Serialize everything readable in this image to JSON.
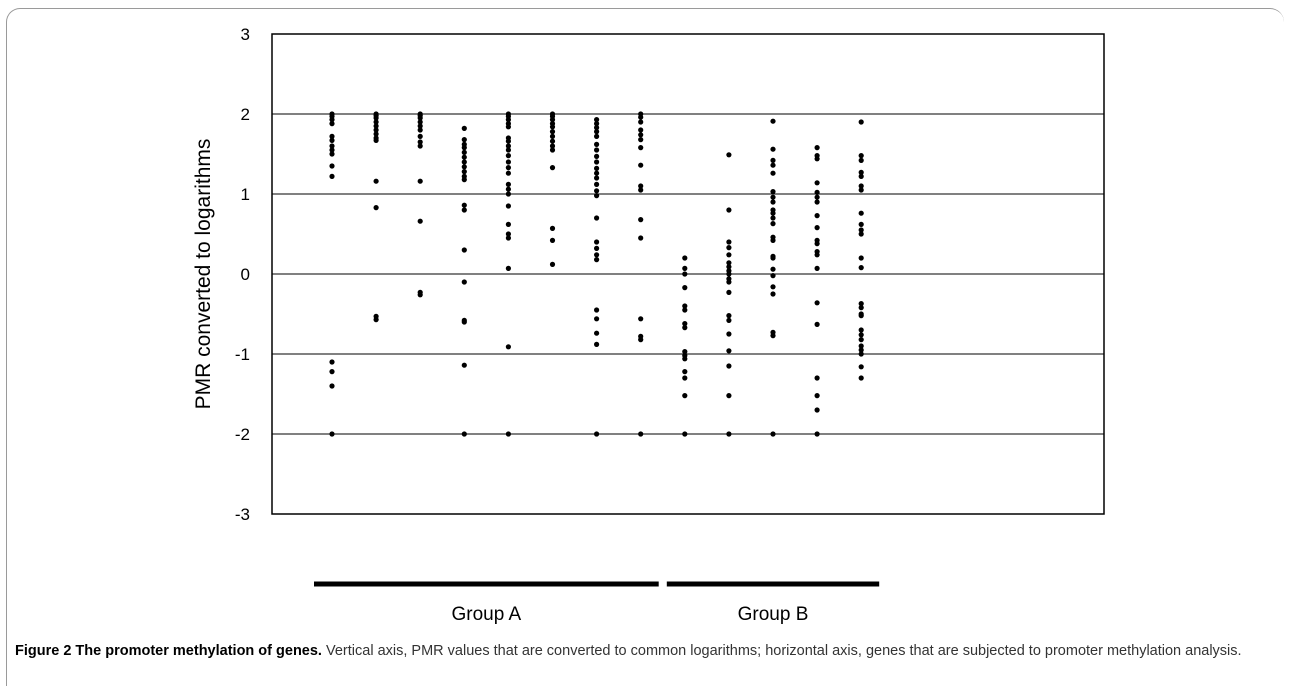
{
  "chart_data": {
    "type": "scatter",
    "ylabel": "PMR converted to logarithms",
    "ylim": [
      -3,
      3
    ],
    "yticks": [
      "3",
      "2",
      "1",
      "0",
      "-1",
      "-2",
      "-3"
    ],
    "grid": "horizontal at 2, 1, 0, -1, -2",
    "groups": [
      {
        "label": "Group A",
        "columns": [
          1,
          8
        ]
      },
      {
        "label": "Group B",
        "columns": [
          9,
          13
        ]
      }
    ],
    "series": [
      {
        "x": 1,
        "values": [
          2.0,
          1.97,
          1.93,
          1.88,
          1.72,
          1.67,
          1.6,
          1.55,
          1.5,
          1.35,
          1.22,
          -1.1,
          -1.22,
          -1.4,
          -2.0
        ]
      },
      {
        "x": 2,
        "values": [
          2.0,
          1.98,
          1.95,
          1.9,
          1.85,
          1.8,
          1.75,
          1.7,
          1.67,
          1.16,
          0.83,
          -0.53,
          -0.57
        ]
      },
      {
        "x": 3,
        "values": [
          2.0,
          1.98,
          1.95,
          1.9,
          1.85,
          1.8,
          1.72,
          1.65,
          1.6,
          1.16,
          0.66,
          -0.23,
          -0.26
        ]
      },
      {
        "x": 4,
        "values": [
          1.82,
          1.68,
          1.62,
          1.58,
          1.52,
          1.46,
          1.4,
          1.34,
          1.28,
          1.22,
          1.18,
          0.86,
          0.8,
          0.3,
          -0.1,
          -0.58,
          -0.6,
          -1.14,
          -2.0
        ]
      },
      {
        "x": 5,
        "values": [
          2.0,
          1.97,
          1.93,
          1.88,
          1.84,
          1.7,
          1.66,
          1.6,
          1.55,
          1.48,
          1.4,
          1.33,
          1.26,
          1.12,
          1.06,
          1.0,
          0.85,
          0.62,
          0.5,
          0.45,
          0.07,
          -0.91,
          -2.0
        ]
      },
      {
        "x": 6,
        "values": [
          2.0,
          1.97,
          1.93,
          1.88,
          1.84,
          1.78,
          1.72,
          1.66,
          1.6,
          1.55,
          1.33,
          0.57,
          0.42,
          0.12
        ]
      },
      {
        "x": 7,
        "values": [
          1.93,
          1.88,
          1.83,
          1.78,
          1.72,
          1.62,
          1.55,
          1.47,
          1.4,
          1.32,
          1.26,
          1.2,
          1.12,
          1.04,
          0.98,
          0.7,
          0.4,
          0.32,
          0.24,
          0.18,
          -0.45,
          -0.56,
          -0.74,
          -0.88,
          -2.0
        ]
      },
      {
        "x": 8,
        "values": [
          2.0,
          1.96,
          1.9,
          1.8,
          1.74,
          1.68,
          1.58,
          1.36,
          1.1,
          1.05,
          0.68,
          0.45,
          -0.56,
          -0.78,
          -0.82,
          -2.0
        ]
      },
      {
        "x": 9,
        "values": [
          0.2,
          0.07,
          0.0,
          -0.17,
          -0.4,
          -0.45,
          -0.62,
          -0.67,
          -0.97,
          -1.02,
          -1.06,
          -1.22,
          -1.3,
          -1.52,
          -2.0
        ]
      },
      {
        "x": 10,
        "values": [
          1.49,
          0.8,
          0.4,
          0.33,
          0.24,
          0.14,
          0.09,
          0.04,
          0.0,
          -0.06,
          -0.1,
          -0.23,
          -0.52,
          -0.58,
          -0.75,
          -0.96,
          -1.15,
          -1.52,
          -2.0
        ]
      },
      {
        "x": 11,
        "values": [
          1.91,
          1.56,
          1.42,
          1.36,
          1.26,
          1.03,
          0.96,
          0.9,
          0.8,
          0.76,
          0.7,
          0.63,
          0.46,
          0.42,
          0.22,
          0.2,
          0.06,
          -0.02,
          -0.16,
          -0.25,
          -0.73,
          -0.77,
          -2.0
        ]
      },
      {
        "x": 12,
        "values": [
          1.58,
          1.48,
          1.44,
          1.14,
          1.02,
          0.96,
          0.9,
          0.73,
          0.58,
          0.42,
          0.38,
          0.28,
          0.24,
          0.07,
          -0.36,
          -0.63,
          -1.3,
          -1.52,
          -1.7,
          -2.0
        ]
      },
      {
        "x": 13,
        "values": [
          1.9,
          1.48,
          1.42,
          1.27,
          1.22,
          1.1,
          1.05,
          0.76,
          0.62,
          0.55,
          0.5,
          0.2,
          0.08,
          -0.37,
          -0.42,
          -0.5,
          -0.52,
          -0.7,
          -0.76,
          -0.82,
          -0.9,
          -0.95,
          -1.0,
          -1.16,
          -1.3
        ]
      }
    ]
  },
  "caption": {
    "bold": "Figure 2 The promoter methylation of genes.",
    "text": " Vertical axis, PMR values that are converted to common logarithms; horizontal axis, genes that are subjected to promoter methylation analysis."
  }
}
